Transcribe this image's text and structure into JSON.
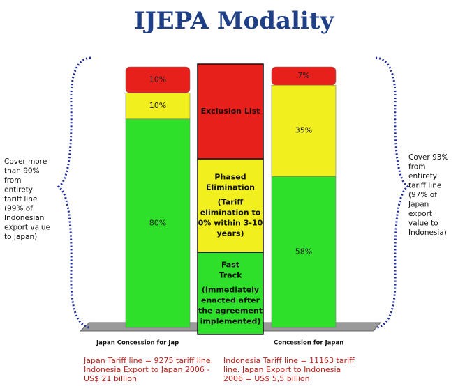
{
  "chart_data": {
    "type": "bar",
    "stacked": true,
    "title": "IJEPA Modality",
    "categories": [
      "Japan Concession for Jap",
      "Concession for Japan"
    ],
    "series": [
      {
        "name": "Fast Track",
        "color": "#2fe02b",
        "values": [
          80,
          58
        ],
        "value_labels": [
          "80%",
          "58%"
        ],
        "description": [
          "(Immediately",
          "enacted after",
          "the agreement",
          "implemented)"
        ]
      },
      {
        "name": "Phased Elimination",
        "color": "#f2ef1f",
        "values": [
          10,
          35
        ],
        "value_labels": [
          "10%",
          "35%"
        ],
        "description": [
          "(Tariff",
          "elimination to",
          "0% within 3-10",
          "years)"
        ]
      },
      {
        "name": "Exclusion List",
        "color": "#e8201c",
        "values": [
          10,
          7
        ],
        "value_labels": [
          "10%",
          "7%"
        ]
      }
    ],
    "annotations": {
      "left_note": [
        "Cover more",
        "than 90%",
        "from",
        "entirety",
        "tariff line",
        "(99% of",
        "Indonesian",
        "export value",
        "to Japan)"
      ],
      "right_note": [
        "Cover 93%",
        "from",
        "entirety",
        "tariff line",
        "(97% of",
        "Japan",
        "export",
        "value to",
        "Indonesia)"
      ],
      "japan_note": [
        "Japan Tariff line = 9275 tariff line.",
        "Indonesia Export to Japan 2006 -",
        "US$ 21 billion"
      ],
      "indonesia_note": [
        "Indonesia Tariff line = 11163 tariff",
        "line.  Japan Export to Indonesia",
        "2006 = US$ 5,5 billion"
      ]
    }
  }
}
